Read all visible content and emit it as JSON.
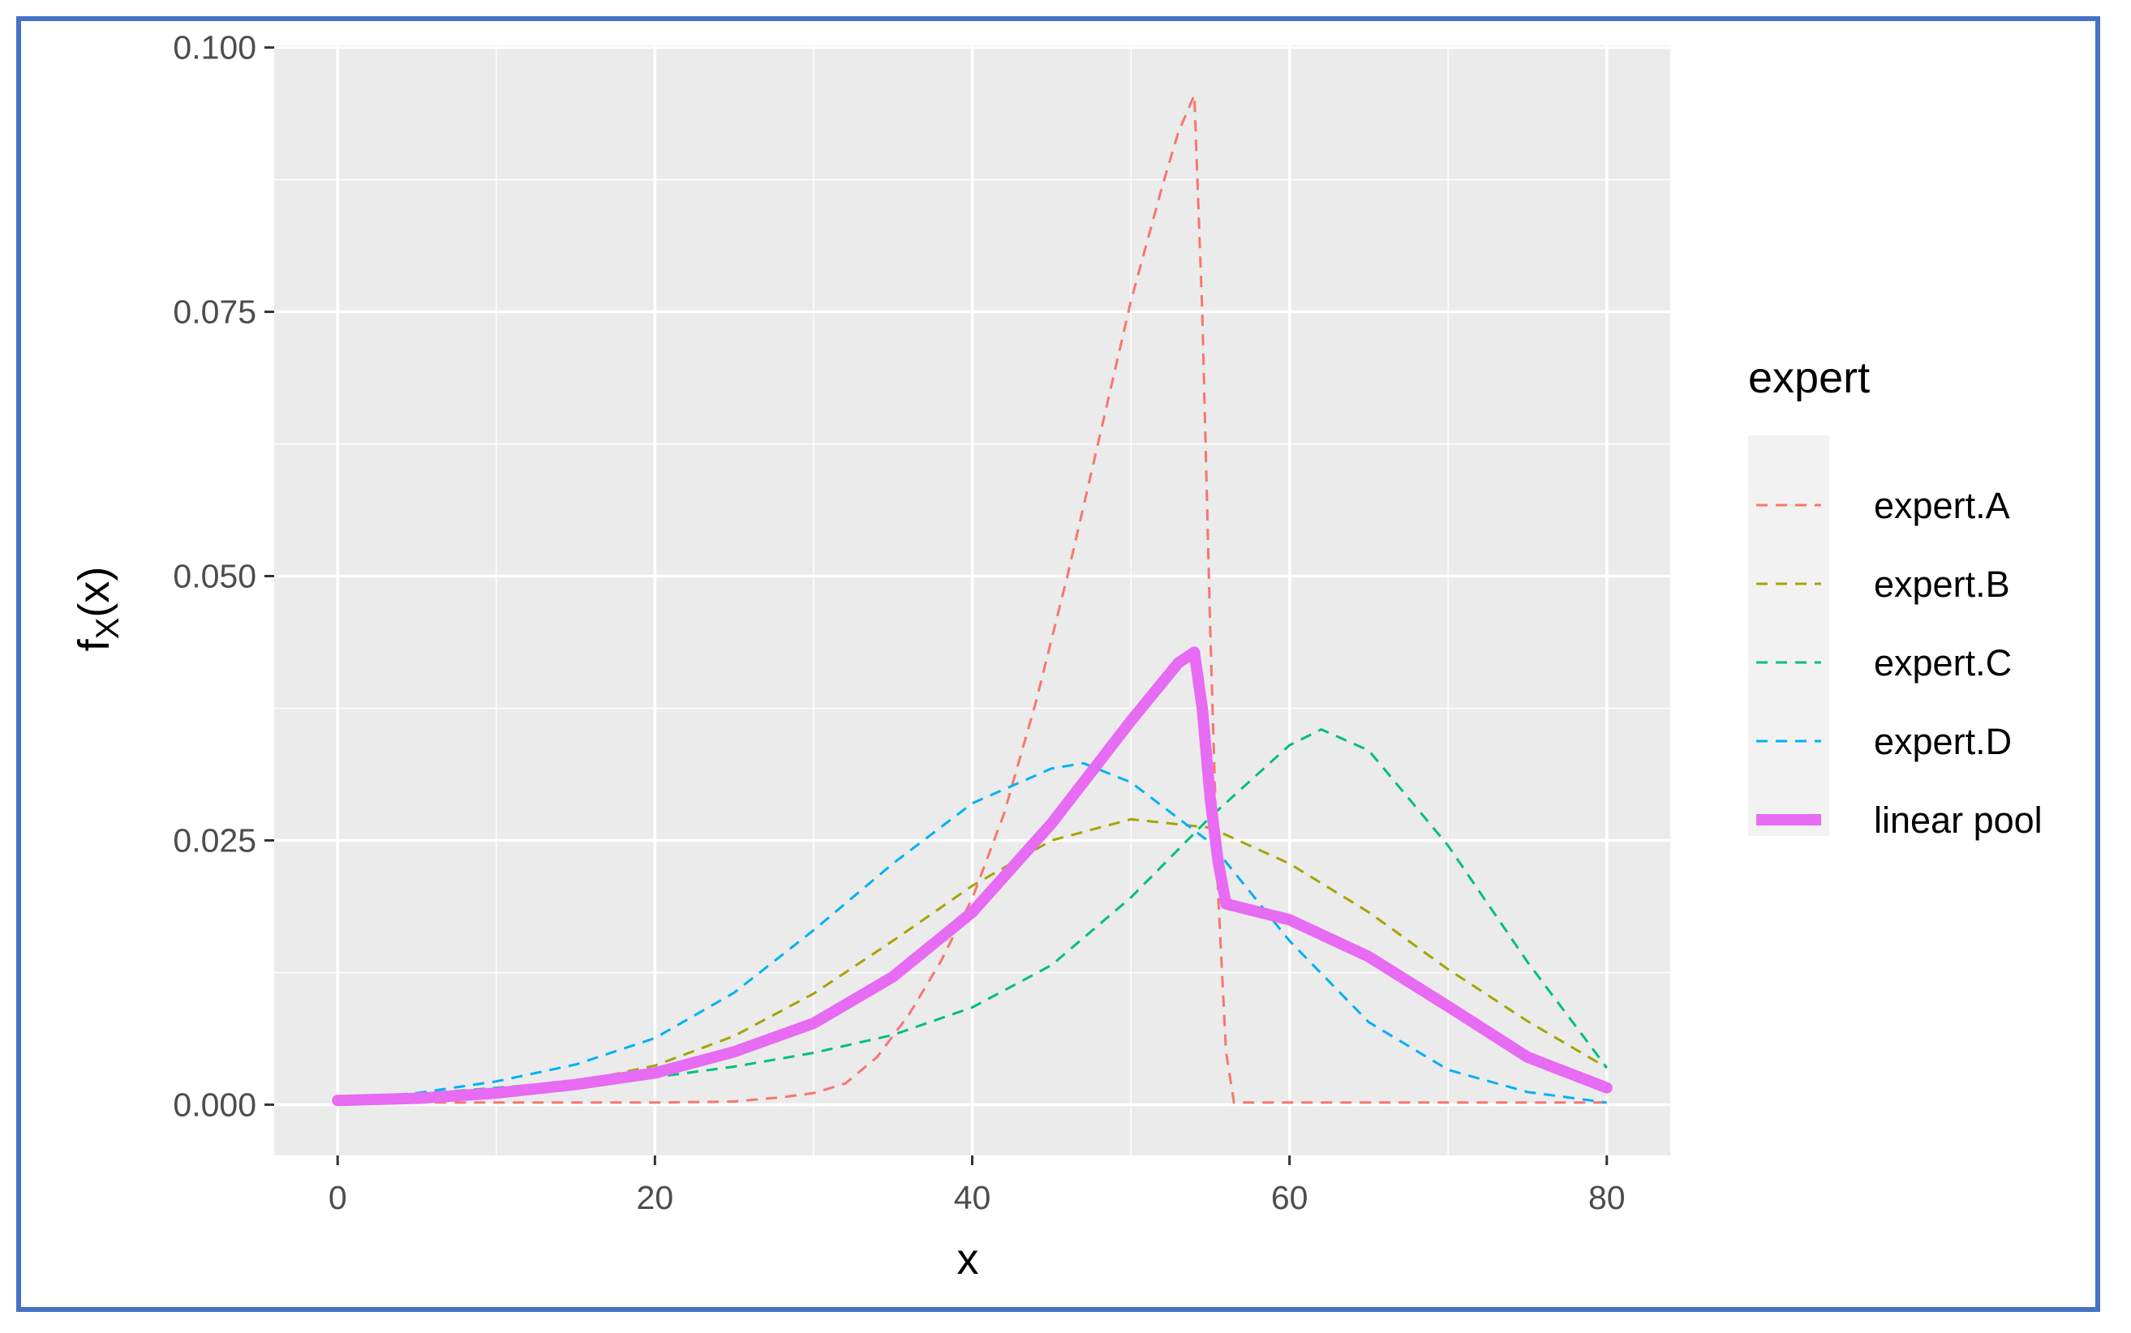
{
  "chart_data": {
    "type": "line",
    "xlabel": "x",
    "ylabel": "f",
    "ylabel_sub": "X",
    "ylabel_arg": "(x)",
    "xlim": [
      -4,
      84
    ],
    "ylim": [
      -0.0048,
      0.1002
    ],
    "x_ticks": [
      0,
      20,
      40,
      60,
      80
    ],
    "x_tick_labels": [
      "0",
      "20",
      "40",
      "60",
      "80"
    ],
    "y_ticks": [
      0,
      0.025,
      0.05,
      0.075,
      0.1
    ],
    "y_tick_labels": [
      "0.000",
      "0.025",
      "0.050",
      "0.075",
      "0.100"
    ],
    "grid": true,
    "legend": {
      "title": "expert",
      "placement": "right"
    },
    "background": "#ebebeb",
    "series": [
      {
        "name": "expert.A",
        "color": "#f8766d",
        "style": "dashed",
        "width": "thin",
        "points": [
          [
            0,
            0.0002
          ],
          [
            10,
            0.0002
          ],
          [
            20,
            0.0002
          ],
          [
            25,
            0.0003
          ],
          [
            28,
            0.0007
          ],
          [
            30,
            0.0011
          ],
          [
            32,
            0.002
          ],
          [
            34,
            0.0045
          ],
          [
            36,
            0.0085
          ],
          [
            38,
            0.0135
          ],
          [
            40,
            0.0195
          ],
          [
            42,
            0.0275
          ],
          [
            44,
            0.038
          ],
          [
            46,
            0.05
          ],
          [
            48,
            0.063
          ],
          [
            50,
            0.076
          ],
          [
            52,
            0.087
          ],
          [
            53,
            0.092
          ],
          [
            54,
            0.0955
          ],
          [
            54.5,
            0.075
          ],
          [
            55,
            0.045
          ],
          [
            55.5,
            0.02
          ],
          [
            56,
            0.005
          ],
          [
            56.5,
            0.0002
          ],
          [
            60,
            0.0002
          ],
          [
            70,
            0.0002
          ],
          [
            80,
            0.0002
          ]
        ]
      },
      {
        "name": "expert.B",
        "color": "#a3a500",
        "style": "dashed",
        "width": "thin",
        "points": [
          [
            0,
            0.0004
          ],
          [
            5,
            0.0006
          ],
          [
            10,
            0.0011
          ],
          [
            15,
            0.0021
          ],
          [
            20,
            0.0037
          ],
          [
            25,
            0.0065
          ],
          [
            30,
            0.0105
          ],
          [
            35,
            0.0155
          ],
          [
            40,
            0.0207
          ],
          [
            45,
            0.025
          ],
          [
            50,
            0.027
          ],
          [
            55,
            0.0262
          ],
          [
            60,
            0.0228
          ],
          [
            65,
            0.0182
          ],
          [
            70,
            0.0128
          ],
          [
            75,
            0.0079
          ],
          [
            80,
            0.0035
          ]
        ]
      },
      {
        "name": "expert.C",
        "color": "#00bf7d",
        "style": "dashed",
        "width": "thin",
        "points": [
          [
            0,
            0.0006
          ],
          [
            5,
            0.001
          ],
          [
            10,
            0.0016
          ],
          [
            15,
            0.0022
          ],
          [
            20,
            0.0026
          ],
          [
            25,
            0.0036
          ],
          [
            30,
            0.0049
          ],
          [
            35,
            0.0066
          ],
          [
            40,
            0.0092
          ],
          [
            45,
            0.0132
          ],
          [
            50,
            0.0196
          ],
          [
            55,
            0.0272
          ],
          [
            60,
            0.034
          ],
          [
            62,
            0.0355
          ],
          [
            65,
            0.0335
          ],
          [
            70,
            0.0245
          ],
          [
            75,
            0.0135
          ],
          [
            80,
            0.0035
          ]
        ]
      },
      {
        "name": "expert.D",
        "color": "#00b0f6",
        "style": "dashed",
        "width": "thin",
        "points": [
          [
            0,
            0.0005
          ],
          [
            5,
            0.0011
          ],
          [
            10,
            0.0022
          ],
          [
            15,
            0.0038
          ],
          [
            20,
            0.0063
          ],
          [
            25,
            0.0106
          ],
          [
            30,
            0.0165
          ],
          [
            35,
            0.0228
          ],
          [
            40,
            0.0285
          ],
          [
            45,
            0.0318
          ],
          [
            47,
            0.0323
          ],
          [
            50,
            0.0305
          ],
          [
            55,
            0.0248
          ],
          [
            60,
            0.0155
          ],
          [
            65,
            0.0078
          ],
          [
            70,
            0.0033
          ],
          [
            75,
            0.0012
          ],
          [
            80,
            0.0002
          ]
        ]
      },
      {
        "name": "linear pool",
        "color": "#e76bf3",
        "style": "solid",
        "width": "thick",
        "points": [
          [
            0,
            0.0004
          ],
          [
            5,
            0.0006
          ],
          [
            10,
            0.0011
          ],
          [
            15,
            0.0019
          ],
          [
            20,
            0.003
          ],
          [
            25,
            0.005
          ],
          [
            30,
            0.0077
          ],
          [
            35,
            0.0121
          ],
          [
            40,
            0.0182
          ],
          [
            45,
            0.0266
          ],
          [
            50,
            0.0363
          ],
          [
            53,
            0.0418
          ],
          [
            54,
            0.0428
          ],
          [
            54.5,
            0.0375
          ],
          [
            55,
            0.029
          ],
          [
            55.5,
            0.023
          ],
          [
            56,
            0.019
          ],
          [
            60,
            0.0175
          ],
          [
            65,
            0.014
          ],
          [
            70,
            0.0093
          ],
          [
            75,
            0.0045
          ],
          [
            80,
            0.0016
          ]
        ]
      }
    ]
  }
}
